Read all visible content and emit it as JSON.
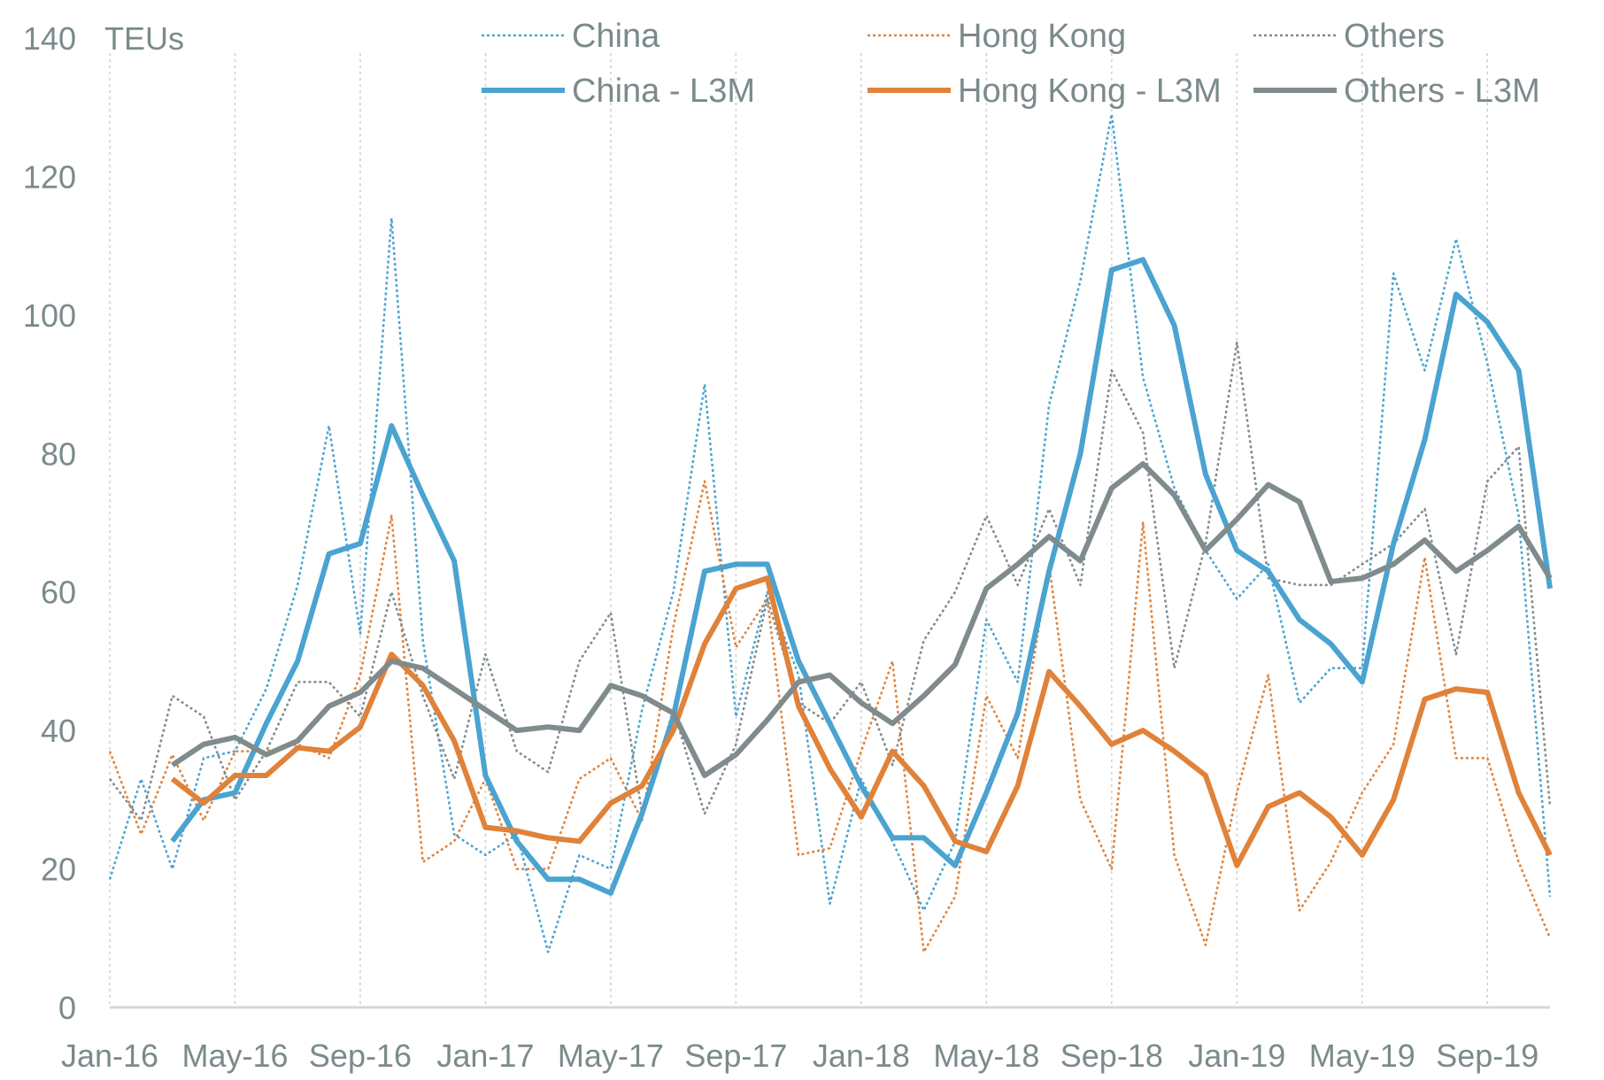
{
  "chart_data": {
    "type": "line",
    "title": "",
    "ylabel": "TEUs",
    "xlabel": "",
    "ylim": [
      0,
      140
    ],
    "yticks": [
      "0",
      "20",
      "40",
      "60",
      "80",
      "100",
      "120",
      "140"
    ],
    "xtick_labels": [
      "Jan-16",
      "May-16",
      "Sep-16",
      "Jan-17",
      "May-17",
      "Sep-17",
      "Jan-18",
      "May-18",
      "Sep-18",
      "Jan-19",
      "May-19",
      "Sep-19"
    ],
    "x_start": "Jan-16",
    "x_end": "Nov-19",
    "legend_position": "top",
    "grid": "vertical dotted at tick months",
    "series": [
      {
        "name": "China",
        "style": "dotted",
        "color": "#4aa3d0",
        "values": [
          18.5,
          33,
          20,
          36,
          37,
          46,
          61,
          84,
          54,
          114,
          53,
          25,
          22,
          25,
          8,
          22,
          20,
          43,
          60,
          90,
          42,
          60,
          48,
          15,
          33,
          24,
          14,
          24,
          56,
          47,
          87,
          105,
          129,
          91,
          75,
          66,
          59,
          64,
          44,
          49,
          49,
          106,
          92,
          111,
          93,
          71,
          16
        ]
      },
      {
        "name": "Hong Kong",
        "style": "dotted",
        "color": "#e0823a",
        "values": [
          37,
          25,
          36.5,
          27,
          37,
          37,
          38,
          36,
          48,
          71,
          21,
          24,
          33,
          20,
          20,
          33,
          36,
          27,
          55,
          76,
          52,
          59,
          22,
          23,
          37,
          50,
          8,
          16,
          45,
          36,
          64,
          30,
          20,
          70,
          22,
          9,
          31,
          48,
          14,
          21,
          31,
          38,
          65,
          36,
          36,
          21,
          10
        ]
      },
      {
        "name": "Others",
        "style": "dotted",
        "color": "#7f8b8c",
        "values": [
          33,
          27,
          45,
          42,
          30,
          37,
          47,
          47,
          42,
          60,
          45,
          33,
          51,
          37,
          34,
          50,
          57,
          28,
          43,
          28,
          38,
          59,
          44,
          41,
          47,
          35,
          53,
          60,
          71,
          61,
          72,
          61,
          92,
          83,
          49,
          67,
          96,
          62,
          61,
          61,
          64,
          67,
          72,
          51,
          76,
          81,
          29
        ]
      },
      {
        "name": "China - L3M",
        "style": "solid",
        "color": "#4aa3d0",
        "values": [
          null,
          null,
          24,
          30,
          31,
          41,
          50,
          65.5,
          67,
          84,
          74,
          64.5,
          33.5,
          24,
          18.5,
          18.5,
          16.5,
          28,
          42,
          63,
          64,
          64,
          50,
          41,
          32,
          24.5,
          24.5,
          20.5,
          31,
          42.5,
          63,
          80,
          106.5,
          108,
          98.5,
          77,
          66,
          63,
          56,
          52.5,
          47,
          67,
          82,
          103,
          99,
          92,
          60.5
        ]
      },
      {
        "name": "Hong Kong - L3M",
        "style": "solid",
        "color": "#e0823a",
        "values": [
          null,
          null,
          33,
          29.5,
          33.5,
          33.5,
          37.5,
          37,
          40.5,
          51,
          46.5,
          38.5,
          26,
          25.5,
          24.5,
          24,
          29.5,
          32,
          40,
          52.5,
          60.5,
          62,
          43.5,
          34.5,
          27.5,
          37,
          32,
          24,
          22.5,
          32,
          48.5,
          43.5,
          38,
          40,
          37,
          33.5,
          20.5,
          29,
          31,
          27.5,
          22,
          30,
          44.5,
          46,
          45.5,
          31,
          22
        ]
      },
      {
        "name": "Others - L3M",
        "style": "solid",
        "color": "#7f8b8c",
        "values": [
          null,
          null,
          35,
          38,
          39,
          36.5,
          38.5,
          43.5,
          45.5,
          50,
          49,
          46,
          43,
          40,
          40.5,
          40,
          46.5,
          45,
          42.5,
          33.5,
          36.5,
          41.5,
          47,
          48,
          44,
          41,
          45,
          49.5,
          60.5,
          64,
          68,
          64.5,
          75,
          78.5,
          74,
          66,
          70.5,
          75.5,
          73,
          61.5,
          62,
          64,
          67.5,
          63,
          66,
          69.5,
          62
        ]
      }
    ]
  }
}
